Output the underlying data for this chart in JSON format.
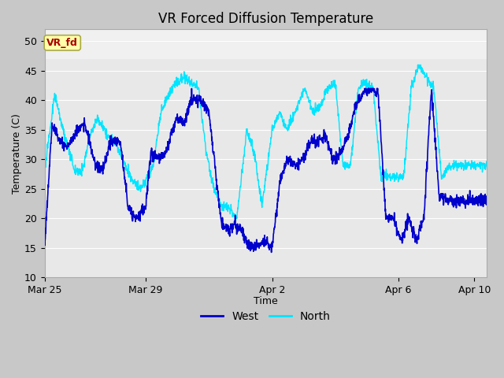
{
  "title": "VR Forced Diffusion Temperature",
  "xlabel": "Time",
  "ylabel": "Temperature (C)",
  "ylim": [
    10,
    52
  ],
  "yticks": [
    10,
    15,
    20,
    25,
    30,
    35,
    40,
    45,
    50
  ],
  "west_color": "#0000CD",
  "north_color": "#00E5FF",
  "plot_bg_color": "#E8E8E8",
  "top_band_color": "#F0F0F0",
  "fig_bg_color": "#C8C8C8",
  "annotation_text": "VR_fd",
  "annotation_fg": "#AA0000",
  "annotation_bg": "#FFFFAA",
  "annotation_edge": "#AAAA44",
  "legend_west": "West",
  "legend_north": "North",
  "xlim": [
    0,
    17.5
  ],
  "xtick_positions": [
    0,
    4,
    9,
    14,
    17
  ],
  "xtick_labels": [
    "Mar 25",
    "Mar 29",
    "Apr 2",
    "Apr 6",
    "Apr 10"
  ],
  "grid_color": "#FFFFFF",
  "title_fontsize": 12,
  "axis_fontsize": 9,
  "legend_fontsize": 10
}
